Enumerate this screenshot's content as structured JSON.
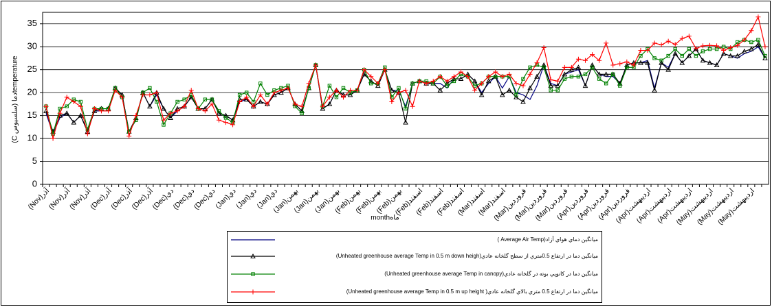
{
  "chart_data": {
    "type": "line",
    "xlabel": "monthماه",
    "ylabel": "temperatureدما (سلسيوس C)",
    "ylim": [
      0,
      37.5
    ],
    "yticks": [
      0,
      5,
      10,
      15,
      20,
      25,
      30,
      35
    ],
    "grid": true,
    "legend": "bottom",
    "categories": [
      "آذر(Nov)",
      null,
      null,
      "آذر(Nov)",
      null,
      null,
      "آذر(Nov)",
      null,
      null,
      "آذر(Dec)",
      null,
      null,
      "آذر(Dec)",
      null,
      null,
      "آذر(Dec)",
      null,
      null,
      "دي(Dec)",
      null,
      null,
      "دي(Dec)",
      null,
      null,
      "دي(Dec)",
      null,
      null,
      "دي(Jan)",
      null,
      null,
      "دي(Jan)",
      null,
      null,
      "دي(Jan)",
      null,
      null,
      "بهمن(Jan)",
      null,
      null,
      "بهمن(Jan)",
      null,
      null,
      "بهمن(Jan)",
      null,
      null,
      "بهمن(Feb)",
      null,
      null,
      "بهمن(Feb)",
      null,
      null,
      "بهمن(Feb)",
      null,
      null,
      "اسفند(Feb)",
      null,
      null,
      "اسفند(Feb)",
      null,
      null,
      "اسفند(Feb)",
      null,
      null,
      "اسفند(Mar)",
      null,
      null,
      "اسفند(Mar)",
      null,
      null,
      "فروردين(Mar)",
      null,
      null,
      "فروردين(Mar)",
      null,
      null,
      "فروردين(Mar)",
      null,
      null,
      "فروردين(Apr)",
      null,
      null,
      "فروردين(Apr)",
      null,
      null,
      "فروردين(Apr)",
      null,
      null,
      "ارديبهشت(Apr)",
      null,
      null,
      "ارديبهشت(Apr)",
      null,
      null,
      "ارديبهشت(Apr)",
      null,
      null,
      "ارديبهشت(May)",
      null,
      null,
      "ارديبهشت(May)",
      null,
      null,
      "ارديبهشت(May)",
      null,
      null
    ],
    "series": [
      {
        "name": "ميانگين دماي هواي آزاد(Average Air Temp )",
        "color": "#000080",
        "marker": "none",
        "values": [
          15.5,
          11,
          14.5,
          15.5,
          13.5,
          15,
          11.5,
          16,
          16,
          16,
          21,
          19.5,
          11.5,
          14,
          20,
          17,
          19.5,
          16.5,
          14.5,
          16,
          17,
          19,
          16.5,
          16.5,
          18.5,
          15.5,
          15,
          14,
          18,
          18.5,
          17,
          18,
          17.5,
          19.5,
          20,
          21,
          17.5,
          16,
          21,
          26,
          16.5,
          17.5,
          20.5,
          19.5,
          19.5,
          20.5,
          24,
          22.5,
          21.5,
          25,
          20.5,
          20.5,
          17,
          22,
          22.5,
          22,
          22,
          22,
          21,
          23,
          23,
          24,
          22.5,
          20,
          22,
          23.5,
          21,
          23.5,
          20,
          19.5,
          18.5,
          21.5,
          26,
          22,
          21.5,
          24,
          24.5,
          25,
          21.5,
          26,
          24,
          23.5,
          23.5,
          22,
          26,
          26.5,
          26.5,
          27,
          21,
          26.5,
          25.5,
          28.5,
          26.5,
          28,
          29.5,
          27,
          26.5,
          26,
          28.5,
          28,
          27.5,
          28.5,
          29,
          30,
          27.5
        ]
      },
      {
        "name": "ميانگين دما در ارتفاع 0.5متري از سطح گلخانه عادي(Unheated greenhouse average Temp in 0.5 m down heigh)",
        "color": "#000000",
        "marker": "triangle",
        "values": [
          16,
          11.5,
          15,
          15.5,
          13.5,
          15,
          11.5,
          16,
          16.5,
          16.5,
          21,
          19.5,
          11.5,
          14.5,
          20,
          17,
          20,
          16.5,
          14.5,
          16.5,
          17,
          19,
          16.5,
          16.5,
          18.5,
          15.5,
          15,
          14,
          18.5,
          18.5,
          17,
          18,
          17.5,
          19.5,
          20,
          21,
          17.5,
          16,
          21,
          26,
          16.5,
          17.5,
          20.5,
          19.5,
          19.5,
          20.5,
          24,
          22.5,
          21.5,
          25,
          20.5,
          20,
          13.5,
          22,
          22.5,
          22,
          22,
          20.5,
          22,
          23,
          23,
          24,
          22.5,
          19.5,
          22.5,
          23.5,
          19.5,
          20.5,
          19,
          18,
          21,
          23.5,
          26,
          21.5,
          21.5,
          24,
          25,
          25.5,
          21.5,
          26,
          24,
          24,
          24,
          22,
          26,
          26.5,
          26.5,
          26.5,
          20.5,
          26.5,
          25,
          28.5,
          26.5,
          28,
          29.5,
          27,
          26.5,
          26,
          28.5,
          28,
          28,
          29,
          29.5,
          30.5,
          27.5
        ]
      },
      {
        "name": "ميانگين دما در كانوپي بوته در گلخانه عادي(Unheated greenhouse average Temp in canopy)",
        "color": "#008000",
        "marker": "square",
        "values": [
          17,
          11,
          16.5,
          17,
          18.5,
          18,
          12,
          16.5,
          16.5,
          16.5,
          21,
          19,
          11.5,
          14,
          20,
          21,
          18,
          13,
          15.5,
          18,
          18.5,
          19.5,
          16.5,
          18.5,
          18.5,
          16,
          14.5,
          13.5,
          19.5,
          20,
          18,
          22,
          19.5,
          20.5,
          21,
          21.5,
          17,
          15.5,
          21,
          26,
          17,
          21.5,
          19,
          21,
          20,
          20.5,
          25,
          22,
          22,
          25.5,
          19,
          21,
          16.5,
          22,
          22.5,
          22.5,
          22,
          23.5,
          21.5,
          22.5,
          24,
          23.5,
          21.5,
          22,
          23.5,
          23.5,
          23.5,
          23.5,
          19.5,
          23,
          25.5,
          26,
          25.5,
          20.5,
          20.5,
          23,
          23.5,
          23.5,
          24,
          25.5,
          23,
          22,
          24,
          21.5,
          25.5,
          25.5,
          28,
          29.5,
          27.5,
          27,
          28,
          29.5,
          28,
          29.5,
          28,
          29,
          29.5,
          29.5,
          30,
          29.5,
          31,
          31.5,
          31,
          31.5,
          28
        ]
      },
      {
        "name": "ميانگين دما در ارتفاع 0.5 متري بالاي گلخانه عادي( Unheated greenhouse average Temp in 0.5 m up height)",
        "color": "#ff0000",
        "marker": "plus",
        "values": [
          17,
          10,
          15.5,
          19,
          18,
          17,
          11,
          16.5,
          16,
          16,
          20.5,
          19,
          10.5,
          15,
          19.5,
          19.5,
          20,
          14,
          15.5,
          16,
          17,
          20.5,
          16.5,
          16,
          17.5,
          14,
          13.5,
          13,
          18,
          19,
          17,
          19.5,
          17.5,
          20,
          20.5,
          21,
          17.5,
          17,
          22,
          26,
          17,
          19,
          20.5,
          19,
          20.5,
          20.5,
          25,
          23.5,
          22,
          25,
          18,
          20,
          20.5,
          17,
          22.5,
          22,
          22.5,
          23.5,
          22.5,
          23.5,
          24.5,
          23.5,
          20.5,
          22,
          23.5,
          24.5,
          23.5,
          24,
          22,
          21.5,
          24,
          26.5,
          29.8,
          22.8,
          22.5,
          25.5,
          25.5,
          27.3,
          27,
          28.3,
          27,
          30.8,
          26,
          26.3,
          26.7,
          26,
          29.2,
          29.2,
          30.8,
          30.4,
          31.2,
          30.5,
          31.8,
          32.3,
          29.6,
          30.2,
          30.3,
          30.2,
          29.2,
          29.8,
          30.3,
          31.5,
          33.5,
          36.5,
          30
        ]
      }
    ]
  }
}
